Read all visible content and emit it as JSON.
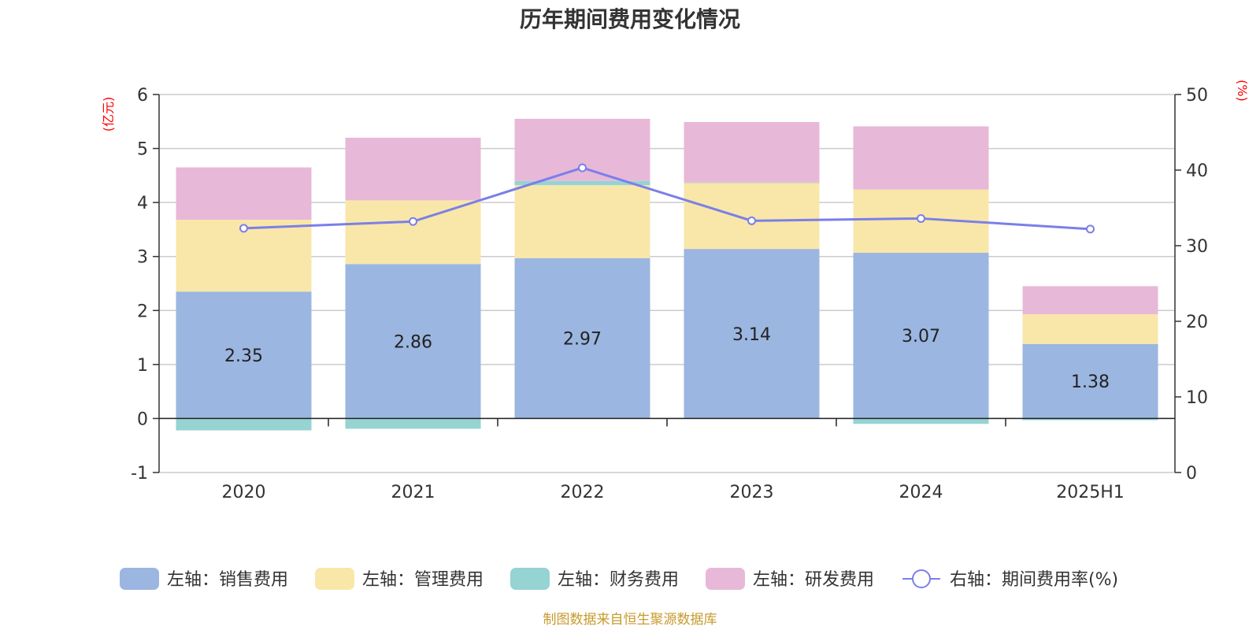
{
  "chart_data": {
    "type": "bar",
    "title": "历年期间费用变化情况",
    "categories": [
      "2020",
      "2021",
      "2022",
      "2023",
      "2024",
      "2025H1"
    ],
    "left_axis": {
      "unit": "(亿元)",
      "ylim": [
        -1,
        6
      ],
      "ticks": [
        "-1",
        "0",
        "1",
        "2",
        "3",
        "4",
        "5",
        "6"
      ]
    },
    "right_axis": {
      "unit": "(%)",
      "ylim": [
        0,
        50
      ],
      "ticks": [
        "0",
        "10",
        "20",
        "30",
        "40",
        "50"
      ]
    },
    "series": [
      {
        "name": "左轴：销售费用",
        "axis": "left",
        "color": "#9bb6e0",
        "values": [
          2.35,
          2.86,
          2.97,
          3.14,
          3.07,
          1.38
        ],
        "labels": [
          "2.35",
          "2.86",
          "2.97",
          "3.14",
          "3.07",
          "1.38"
        ]
      },
      {
        "name": "左轴：管理费用",
        "axis": "left",
        "color": "#f8e7a8",
        "values": [
          1.33,
          1.18,
          1.35,
          1.22,
          1.17,
          0.55
        ]
      },
      {
        "name": "左轴：财务费用",
        "axis": "left",
        "color": "#96d3d3",
        "values": [
          -0.22,
          -0.19,
          0.08,
          0.01,
          -0.1,
          -0.03
        ]
      },
      {
        "name": "左轴：研发费用",
        "axis": "left",
        "color": "#e8b8d8",
        "values": [
          0.97,
          1.16,
          1.15,
          1.12,
          1.17,
          0.52
        ]
      },
      {
        "name": "右轴：期间费用率(%)",
        "axis": "right",
        "type": "line",
        "color": "#7b7fe8",
        "values": [
          32.3,
          33.2,
          40.3,
          33.3,
          33.6,
          32.2
        ]
      }
    ],
    "grid": true,
    "legend_position": "bottom"
  },
  "footer": {
    "source": "制图数据来自恒生聚源数据库"
  }
}
